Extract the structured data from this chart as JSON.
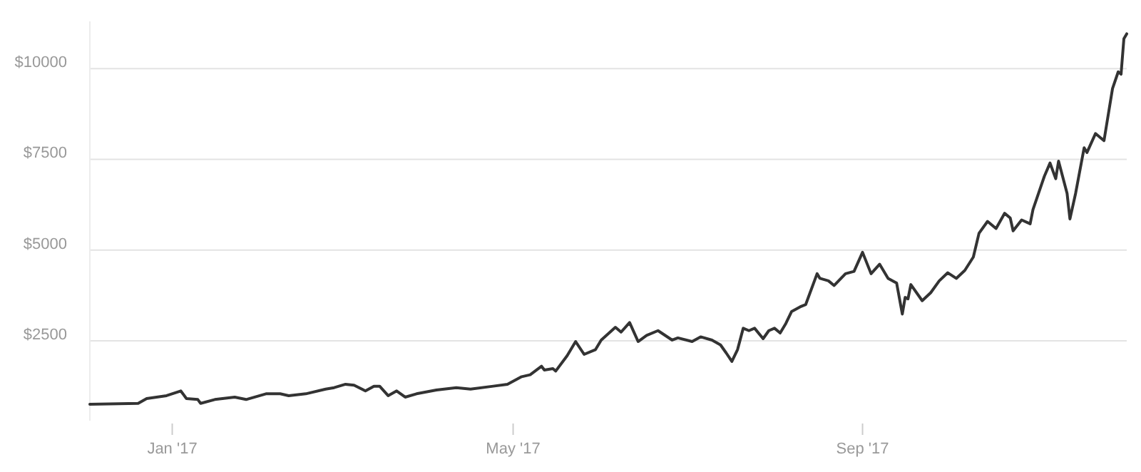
{
  "chart_data": {
    "type": "line",
    "x": [
      "2016-12-03",
      "2016-12-20",
      "2016-12-23",
      "2016-12-30",
      "2017-01-04",
      "2017-01-06",
      "2017-01-10",
      "2017-01-11",
      "2017-01-16",
      "2017-01-23",
      "2017-01-27",
      "2017-02-03",
      "2017-02-08",
      "2017-02-11",
      "2017-02-17",
      "2017-02-24",
      "2017-02-27",
      "2017-03-03",
      "2017-03-06",
      "2017-03-10",
      "2017-03-13",
      "2017-03-15",
      "2017-03-18",
      "2017-03-21",
      "2017-03-24",
      "2017-03-28",
      "2017-04-04",
      "2017-04-11",
      "2017-04-16",
      "2017-04-24",
      "2017-04-29",
      "2017-05-04",
      "2017-05-07",
      "2017-05-11",
      "2017-05-12",
      "2017-05-15",
      "2017-05-16",
      "2017-05-20",
      "2017-05-23",
      "2017-05-26",
      "2017-05-30",
      "2017-06-01",
      "2017-06-06",
      "2017-06-08",
      "2017-06-11",
      "2017-06-14",
      "2017-06-17",
      "2017-06-21",
      "2017-06-26",
      "2017-06-28",
      "2017-07-03",
      "2017-07-06",
      "2017-07-10",
      "2017-07-13",
      "2017-07-15",
      "2017-07-17",
      "2017-07-19",
      "2017-07-21",
      "2017-07-23",
      "2017-07-25",
      "2017-07-28",
      "2017-07-30",
      "2017-08-01",
      "2017-08-03",
      "2017-08-05",
      "2017-08-07",
      "2017-08-10",
      "2017-08-12",
      "2017-08-16",
      "2017-08-17",
      "2017-08-20",
      "2017-08-22",
      "2017-08-26",
      "2017-08-29",
      "2017-09-01",
      "2017-09-04",
      "2017-09-07",
      "2017-09-10",
      "2017-09-13",
      "2017-09-15",
      "2017-09-16",
      "2017-09-17",
      "2017-09-18",
      "2017-09-22",
      "2017-09-25",
      "2017-09-28",
      "2017-10-01",
      "2017-10-04",
      "2017-10-07",
      "2017-10-10",
      "2017-10-12",
      "2017-10-15",
      "2017-10-18",
      "2017-10-21",
      "2017-10-23",
      "2017-10-24",
      "2017-10-27",
      "2017-10-30",
      "2017-10-31",
      "2017-11-04",
      "2017-11-06",
      "2017-11-08",
      "2017-11-09",
      "2017-11-12",
      "2017-11-13",
      "2017-11-15",
      "2017-11-18",
      "2017-11-19",
      "2017-11-22",
      "2017-11-24",
      "2017-11-25",
      "2017-11-28",
      "2017-11-30",
      "2017-12-01",
      "2017-12-02",
      "2017-12-03"
    ],
    "series": [
      {
        "color": "#333333",
        "values": [
          754,
          777,
          910,
          989,
          1119,
          910,
          883,
          777,
          883,
          949,
          883,
          1040,
          1040,
          989,
          1040,
          1170,
          1210,
          1303,
          1277,
          1119,
          1250,
          1250,
          989,
          1119,
          949,
          1040,
          1145,
          1210,
          1170,
          1250,
          1303,
          1511,
          1564,
          1799,
          1694,
          1733,
          1667,
          2088,
          2480,
          2127,
          2258,
          2520,
          2873,
          2740,
          3003,
          2480,
          2650,
          2780,
          2520,
          2580,
          2480,
          2610,
          2520,
          2387,
          2166,
          1931,
          2258,
          2846,
          2780,
          2846,
          2559,
          2780,
          2846,
          2715,
          2977,
          3305,
          3435,
          3501,
          4349,
          4220,
          4153,
          4023,
          4349,
          4414,
          4938,
          4349,
          4610,
          4220,
          4090,
          3238,
          3696,
          3655,
          4050,
          3605,
          3826,
          4153,
          4375,
          4220,
          4440,
          4808,
          5464,
          5790,
          5594,
          6013,
          5882,
          5530,
          5830,
          5725,
          6117,
          7033,
          7398,
          6967,
          7450,
          6562,
          5856,
          6562,
          7818,
          7687,
          8210,
          8080,
          8014,
          9451,
          9910,
          9845,
          10825,
          10958
        ]
      }
    ],
    "xlim": [
      "2016-12-03",
      "2017-12-03"
    ],
    "xticks": [
      {
        "value": "2017-01-01",
        "label": "Jan '17"
      },
      {
        "value": "2017-05-01",
        "label": "May '17"
      },
      {
        "value": "2017-09-01",
        "label": "Sep '17"
      }
    ],
    "ylim": [
      300,
      11300
    ],
    "yticks": [
      {
        "value": 2500,
        "label": "$2500"
      },
      {
        "value": 5000,
        "label": "$5000"
      },
      {
        "value": 7500,
        "label": "$7500"
      },
      {
        "value": 10000,
        "label": "$10000"
      }
    ],
    "grid": "y",
    "marker": "none",
    "line_style": "solid"
  }
}
